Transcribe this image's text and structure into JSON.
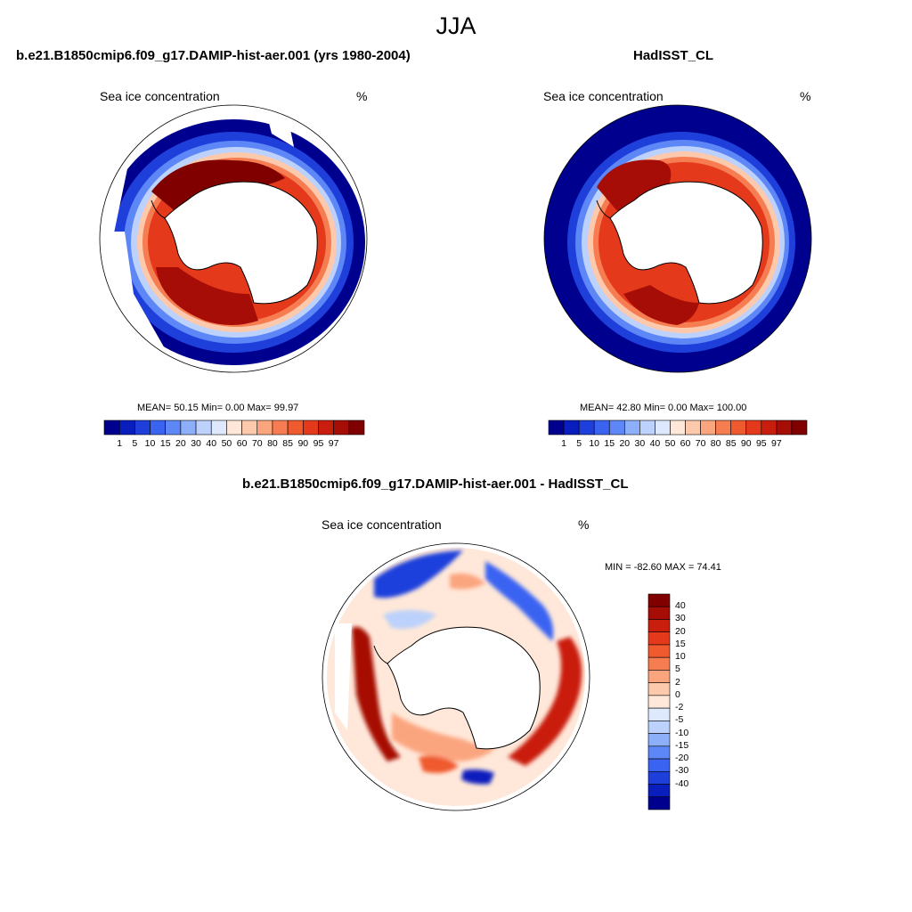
{
  "season_title": "JJA",
  "colors": {
    "ocean_bg": "#ffffff",
    "land": "#ffffff",
    "coast": "#000000",
    "ice_pos": [
      "#00008f",
      "#0a1dbd",
      "#1f3fdb",
      "#3a63f2",
      "#5d86f7",
      "#8daff9",
      "#bcd1fb",
      "#dfe9fd",
      "#ffe8d9",
      "#fdc9ad",
      "#fba57f",
      "#f67d52",
      "#ef5a2f",
      "#e5391b",
      "#c91d0e",
      "#a60d06",
      "#800000"
    ],
    "diff": [
      "#00008f",
      "#0a1dbd",
      "#1f3fdb",
      "#3a63f2",
      "#5d86f7",
      "#8daff9",
      "#bcd1fb",
      "#dfe9fd",
      "#ffe8d9",
      "#fdc9ad",
      "#fba57f",
      "#f67d52",
      "#ef5a2f",
      "#e5391b",
      "#c91d0e",
      "#a60d06",
      "#800000"
    ]
  },
  "panels": {
    "model": {
      "title": "b.e21.B1850cmip6.f09_g17.DAMIP-hist-aer.001 (yrs 1980-2004)",
      "variable": "Sea ice concentration",
      "units": "%",
      "stats": "MEAN=  50.15  Min=   0.00  Max=  99.97",
      "colorbar_ticks": [
        "1",
        "5",
        "10",
        "15",
        "20",
        "30",
        "40",
        "50",
        "60",
        "70",
        "80",
        "85",
        "90",
        "95",
        "97"
      ]
    },
    "obs": {
      "title": "HadISST_CL",
      "variable": "Sea ice concentration",
      "units": "%",
      "stats": "MEAN=  42.80  Min=   0.00  Max= 100.00",
      "colorbar_ticks": [
        "1",
        "5",
        "10",
        "15",
        "20",
        "30",
        "40",
        "50",
        "60",
        "70",
        "80",
        "85",
        "90",
        "95",
        "97"
      ]
    },
    "diff": {
      "title": "b.e21.B1850cmip6.f09_g17.DAMIP-hist-aer.001 - HadISST_CL",
      "variable": "Sea ice concentration",
      "units": "%",
      "stats": "MIN = -82.60 MAX =  74.41",
      "colorbar_ticks": [
        "40",
        "30",
        "20",
        "15",
        "10",
        "5",
        "2",
        "0",
        "-2",
        "-5",
        "-10",
        "-15",
        "-20",
        "-30",
        "-40"
      ]
    }
  }
}
